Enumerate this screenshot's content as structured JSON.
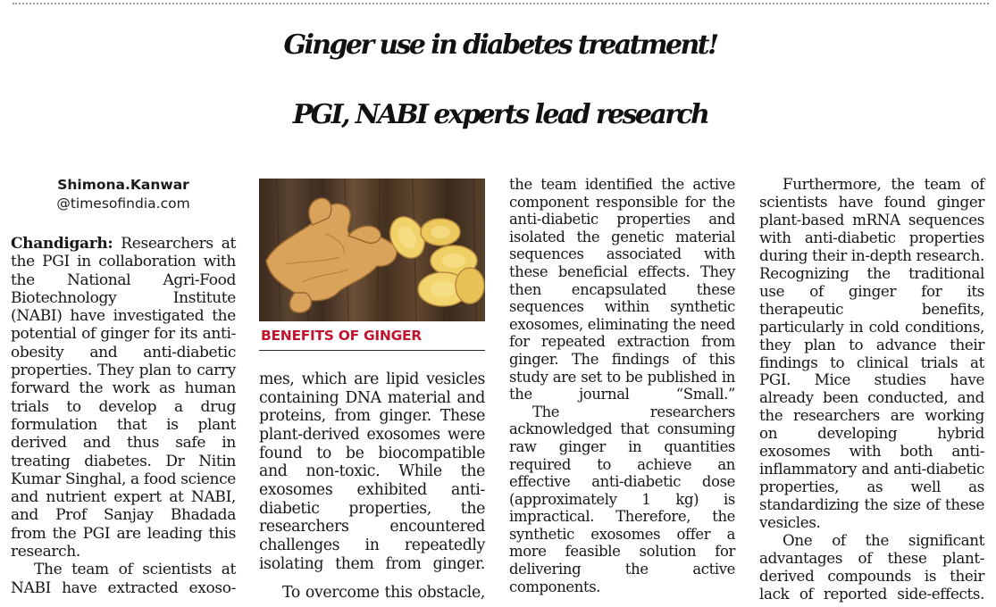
{
  "headline": {
    "line1": "Ginger use in diabetes treatment!",
    "line2": "PGI, NABI experts lead research"
  },
  "byline": {
    "author": "Shimona.Kanwar",
    "handle": "@timesofindia.com"
  },
  "photo": {
    "caption": "BENEFITS OF GINGER",
    "depicts": "ginger-root-and-slices"
  },
  "colors": {
    "caption_red": "#c0152c",
    "text": "#161616",
    "wood": "#4a3625",
    "ginger": "#d9a35b"
  },
  "columns": {
    "col1": {
      "dateline": "Chandigarh:",
      "p1": "Researchers at the PGI in collaboration with the National Agri-Food Biotechnology Institute (NABI) have investigated the potential of ginger for its anti-obesity and anti-diabetic properties. They plan to carry forward the work as human trials to develop a drug formulation that is plant derived and thus safe in treating diabetes. Dr Nitin Kumar Singhal, a food science and nutrient expert at NABI, and Prof Sanjay Bhadada from the PGI are leading this research.",
      "p2": "The team of scientists at NABI have extracted exoso-"
    },
    "col2": {
      "p1": "mes, which are lipid vesicles containing DNA material and proteins, from ginger. These plant-derived exosomes were found to be biocompatible and non-toxic. While the exosomes exhibited anti-diabetic properties, the researchers encountered challenges in repeatedly isolating them from ginger.",
      "p2": "To overcome this obstacle,"
    },
    "col3": {
      "p1": "the team identified the active component responsible for the anti-diabetic properties and isolated the genetic material sequences associated with these beneficial effects. They then encapsulated these sequences within synthetic exosomes, eliminating the need for repeated extraction from ginger. The findings of this study are set to be published in the journal “Small.”",
      "p2": "The researchers acknowledged that consuming raw ginger in quantities required to achieve an effective anti-diabetic dose (approximately 1 kg) is impractical. Therefore, the synthetic exosomes offer a more feasible solution for delivering the active components."
    },
    "col4": {
      "p1": "Furthermore, the team of scientists have found ginger plant-based mRNA sequences with anti-diabetic properties during their in-depth research. Recognizing the traditional use of ginger for its therapeutic benefits, particularly in cold conditions, they plan to advance their findings to clinical trials at PGI. Mice studies have already been conducted, and the researchers are working on developing hybrid exosomes with both anti-inflammatory and anti-diabetic properties, as well as standardizing the size of these vesicles.",
      "p2": "One of the significant advantages of these plant-derived compounds is their lack of reported side-effects."
    }
  }
}
